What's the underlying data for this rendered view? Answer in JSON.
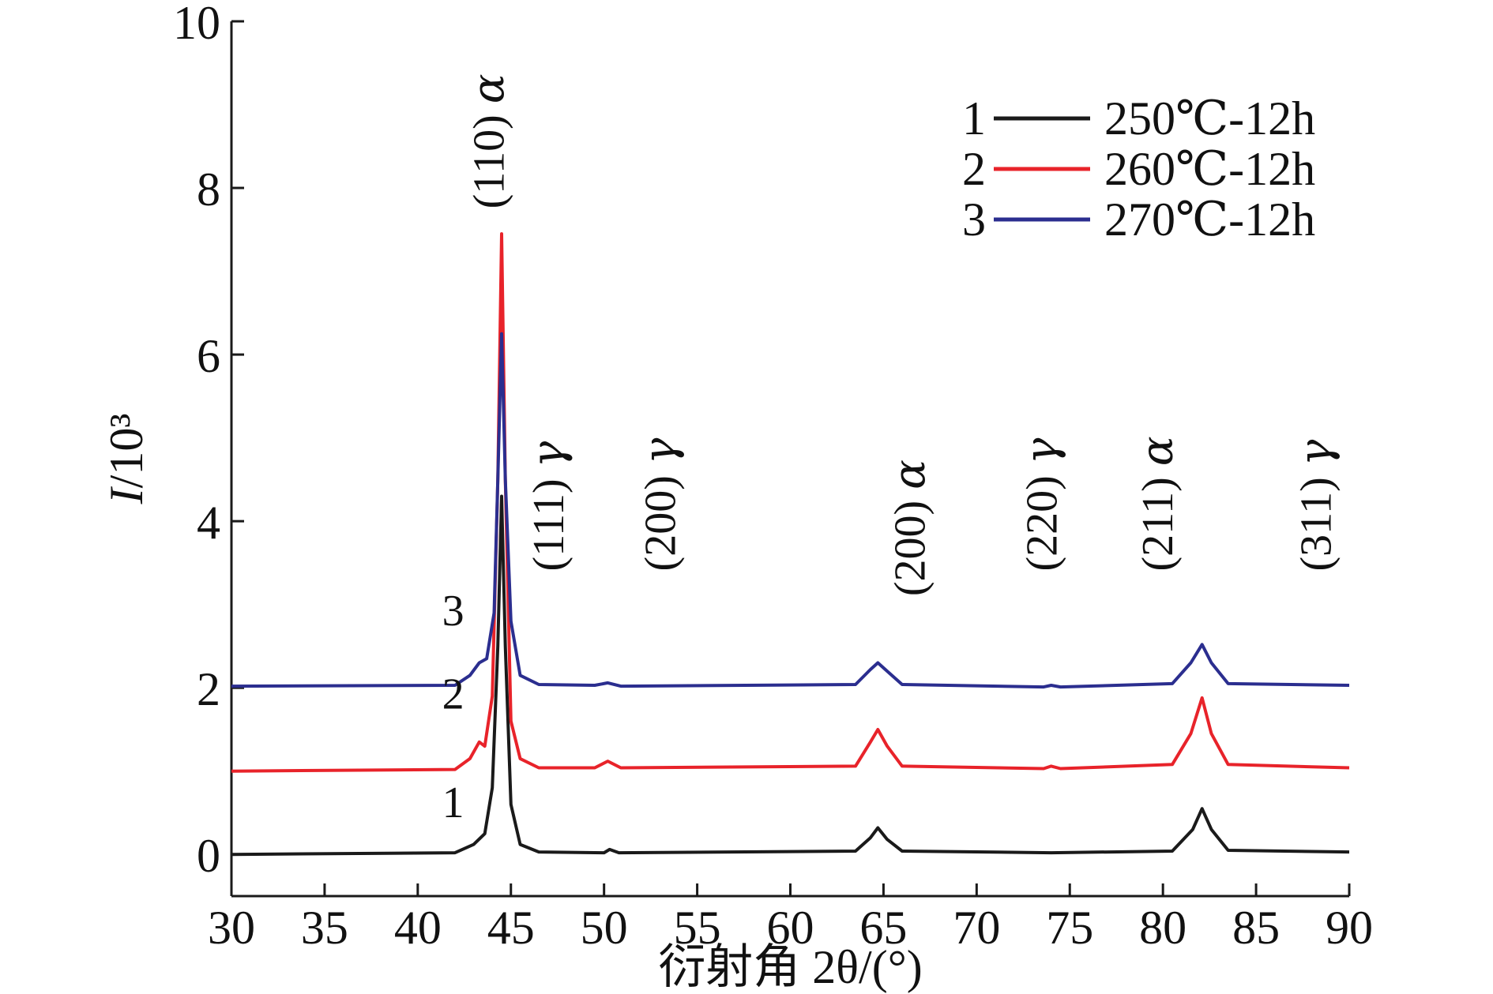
{
  "chart_data": {
    "type": "line",
    "xlabel": "衍射角 2θ/(°)",
    "ylabel": "I/10³",
    "xlim": [
      30,
      90
    ],
    "ylim": [
      -0.5,
      10
    ],
    "xticks": [
      30,
      35,
      40,
      45,
      50,
      55,
      60,
      65,
      70,
      75,
      80,
      85,
      90
    ],
    "yticks": [
      0,
      2,
      4,
      6,
      8,
      10
    ],
    "grid": false,
    "legend_position": "top-right",
    "series": [
      {
        "name": "250℃-12h",
        "number": "1",
        "color": "#1a1a1a",
        "baseline": 0.0,
        "points": [
          [
            30,
            0.0
          ],
          [
            42,
            0.02
          ],
          [
            43.0,
            0.12
          ],
          [
            43.6,
            0.25
          ],
          [
            44.0,
            0.8
          ],
          [
            44.3,
            2.5
          ],
          [
            44.5,
            4.3
          ],
          [
            44.7,
            2.5
          ],
          [
            45.0,
            0.6
          ],
          [
            45.5,
            0.12
          ],
          [
            46.5,
            0.03
          ],
          [
            50.0,
            0.02
          ],
          [
            50.3,
            0.06
          ],
          [
            50.8,
            0.02
          ],
          [
            63.5,
            0.04
          ],
          [
            64.3,
            0.2
          ],
          [
            64.7,
            0.32
          ],
          [
            65.2,
            0.18
          ],
          [
            66.0,
            0.04
          ],
          [
            74.0,
            0.02
          ],
          [
            80.5,
            0.04
          ],
          [
            81.6,
            0.3
          ],
          [
            82.1,
            0.55
          ],
          [
            82.6,
            0.3
          ],
          [
            83.5,
            0.05
          ],
          [
            90,
            0.03
          ]
        ]
      },
      {
        "name": "260℃-12h",
        "number": "2",
        "color": "#e8232a",
        "baseline": 1.0,
        "points": [
          [
            30,
            1.0
          ],
          [
            42,
            1.02
          ],
          [
            42.8,
            1.15
          ],
          [
            43.3,
            1.35
          ],
          [
            43.6,
            1.3
          ],
          [
            44.0,
            1.9
          ],
          [
            44.3,
            4.5
          ],
          [
            44.5,
            7.45
          ],
          [
            44.7,
            4.5
          ],
          [
            45.0,
            1.6
          ],
          [
            45.5,
            1.15
          ],
          [
            46.5,
            1.04
          ],
          [
            49.5,
            1.04
          ],
          [
            50.2,
            1.12
          ],
          [
            50.9,
            1.04
          ],
          [
            63.5,
            1.06
          ],
          [
            64.3,
            1.35
          ],
          [
            64.7,
            1.5
          ],
          [
            65.2,
            1.3
          ],
          [
            66.0,
            1.06
          ],
          [
            73.6,
            1.03
          ],
          [
            74.0,
            1.06
          ],
          [
            74.5,
            1.03
          ],
          [
            80.5,
            1.08
          ],
          [
            81.5,
            1.45
          ],
          [
            82.1,
            1.88
          ],
          [
            82.6,
            1.45
          ],
          [
            83.5,
            1.08
          ],
          [
            90,
            1.04
          ]
        ]
      },
      {
        "name": "270℃-12h",
        "number": "3",
        "color": "#2b2e8f",
        "baseline": 2.0,
        "points": [
          [
            30,
            2.02
          ],
          [
            42,
            2.03
          ],
          [
            42.8,
            2.15
          ],
          [
            43.3,
            2.3
          ],
          [
            43.7,
            2.35
          ],
          [
            44.1,
            2.9
          ],
          [
            44.3,
            4.5
          ],
          [
            44.5,
            6.25
          ],
          [
            44.7,
            4.5
          ],
          [
            45.0,
            2.8
          ],
          [
            45.5,
            2.15
          ],
          [
            46.5,
            2.04
          ],
          [
            49.5,
            2.03
          ],
          [
            50.2,
            2.06
          ],
          [
            50.9,
            2.02
          ],
          [
            63.5,
            2.04
          ],
          [
            64.3,
            2.22
          ],
          [
            64.7,
            2.3
          ],
          [
            65.2,
            2.2
          ],
          [
            66.0,
            2.04
          ],
          [
            73.6,
            2.01
          ],
          [
            74.0,
            2.03
          ],
          [
            74.5,
            2.01
          ],
          [
            80.5,
            2.05
          ],
          [
            81.5,
            2.3
          ],
          [
            82.1,
            2.52
          ],
          [
            82.6,
            2.3
          ],
          [
            83.5,
            2.05
          ],
          [
            90,
            2.03
          ]
        ]
      }
    ],
    "curve_labels": [
      {
        "text": "1",
        "x": 41.9,
        "y": 0.45
      },
      {
        "text": "2",
        "x": 41.9,
        "y": 1.75
      },
      {
        "text": "3",
        "x": 41.9,
        "y": 2.75
      }
    ],
    "annotations": [
      {
        "plane": "(110)",
        "phase": "α",
        "x": 44.6,
        "y": 7.75
      },
      {
        "plane": "(111)",
        "phase": "γ",
        "x": 47.8,
        "y": 3.4
      },
      {
        "plane": "(200)",
        "phase": "γ",
        "x": 53.8,
        "y": 3.4
      },
      {
        "plane": "(200)",
        "phase": "α",
        "x": 67.2,
        "y": 3.1
      },
      {
        "plane": "(220)",
        "phase": "γ",
        "x": 74.3,
        "y": 3.4
      },
      {
        "plane": "(211)",
        "phase": "α",
        "x": 80.5,
        "y": 3.4
      },
      {
        "plane": "(311)",
        "phase": "γ",
        "x": 89.0,
        "y": 3.4
      }
    ]
  }
}
